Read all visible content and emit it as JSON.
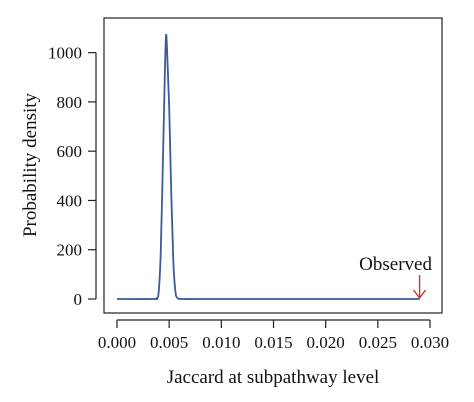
{
  "chart_data": {
    "type": "line",
    "title": "",
    "xlabel": "Jaccard at subpathway level",
    "ylabel": "Probability density",
    "xlim": [
      0.0,
      0.03
    ],
    "ylim": [
      0,
      1100
    ],
    "x_ticks": [
      0.0,
      0.005,
      0.01,
      0.015,
      0.02,
      0.025,
      0.03
    ],
    "x_tick_labels": [
      "0.000",
      "0.005",
      "0.010",
      "0.015",
      "0.020",
      "0.025",
      "0.030"
    ],
    "y_ticks": [
      0,
      200,
      400,
      600,
      800,
      1000
    ],
    "y_tick_labels": [
      "0",
      "200",
      "400",
      "600",
      "800",
      "1000"
    ],
    "grid": false,
    "series": [
      {
        "color": "#3a5a9a",
        "x": [
          0.0,
          0.0035,
          0.0038,
          0.004,
          0.0042,
          0.0044,
          0.0046,
          0.0047,
          0.0048,
          0.005,
          0.0052,
          0.0054,
          0.0056,
          0.0058,
          0.0062,
          0.008,
          0.015,
          0.025,
          0.029
        ],
        "y": [
          0,
          0,
          3,
          30,
          200,
          560,
          940,
          1070,
          1010,
          780,
          430,
          150,
          30,
          4,
          0,
          0,
          0,
          0,
          0
        ]
      }
    ],
    "annotations": [
      {
        "text": "Observed",
        "x": 0.029,
        "y": 0,
        "arrow": true,
        "color": "#cc3333"
      }
    ]
  }
}
